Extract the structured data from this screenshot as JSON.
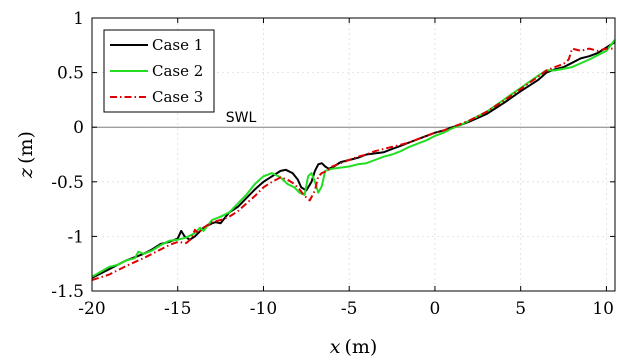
{
  "chart_data": {
    "type": "line",
    "xlabel": "x (m)",
    "ylabel": "z (m)",
    "xlabel_var": "x",
    "ylabel_var": "z",
    "axis_unit": "(m)",
    "xlim": [
      -20,
      10.5
    ],
    "ylim": [
      -1.5,
      1
    ],
    "xticks": [
      -20,
      -15,
      -10,
      -5,
      0,
      5,
      10
    ],
    "yticks": [
      -1.5,
      -1,
      -0.5,
      0,
      0.5,
      1
    ],
    "xtick_labels": [
      "-20",
      "-15",
      "-10",
      "-5",
      "0",
      "5",
      "10"
    ],
    "ytick_labels": [
      "-1.5",
      "-1",
      "-0.5",
      "0",
      "0.5",
      "1"
    ],
    "grid": true,
    "legend_position": "top-left",
    "reference_line": {
      "label": "SWL",
      "y": 0,
      "color": "#808080"
    },
    "series": [
      {
        "name": "Case 1",
        "color": "#000000",
        "dash": "solid",
        "x": [
          -20,
          -19,
          -18,
          -17,
          -16.5,
          -16,
          -15.5,
          -15,
          -14.8,
          -14.6,
          -14.3,
          -14,
          -13.5,
          -13,
          -12.8,
          -12.5,
          -12,
          -11.5,
          -11,
          -10.5,
          -10,
          -9.5,
          -9,
          -8.7,
          -8.3,
          -8,
          -7.8,
          -7.5,
          -7.2,
          -7,
          -6.8,
          -6.6,
          -6.4,
          -6.2,
          -6,
          -5.5,
          -5,
          -4.5,
          -4,
          -3.5,
          -3,
          -2.5,
          -2,
          -1.5,
          -1,
          -0.5,
          0,
          0.5,
          1,
          1.5,
          2,
          3,
          4,
          5,
          6,
          6.5,
          7,
          7.5,
          8,
          8.5,
          9,
          9.5,
          10,
          10.5
        ],
        "y": [
          -1.38,
          -1.3,
          -1.22,
          -1.16,
          -1.12,
          -1.07,
          -1.05,
          -1.02,
          -0.95,
          -1.0,
          -1.03,
          -1.0,
          -0.92,
          -0.88,
          -0.87,
          -0.88,
          -0.78,
          -0.73,
          -0.65,
          -0.57,
          -0.5,
          -0.45,
          -0.4,
          -0.39,
          -0.42,
          -0.48,
          -0.55,
          -0.58,
          -0.5,
          -0.4,
          -0.34,
          -0.33,
          -0.36,
          -0.38,
          -0.37,
          -0.32,
          -0.3,
          -0.28,
          -0.25,
          -0.24,
          -0.23,
          -0.2,
          -0.17,
          -0.14,
          -0.11,
          -0.08,
          -0.05,
          -0.03,
          0.0,
          0.02,
          0.05,
          0.12,
          0.22,
          0.33,
          0.43,
          0.5,
          0.53,
          0.55,
          0.59,
          0.63,
          0.65,
          0.68,
          0.73,
          0.78
        ]
      },
      {
        "name": "Case 2",
        "color": "#22dd22",
        "dash": "solid",
        "x": [
          -20,
          -19,
          -18.5,
          -18,
          -17.5,
          -17.3,
          -17,
          -16.5,
          -16,
          -15.5,
          -15,
          -14.5,
          -14,
          -13.7,
          -13.5,
          -13,
          -12.5,
          -12,
          -11.5,
          -11,
          -10.5,
          -10,
          -9.5,
          -9,
          -8.6,
          -8.2,
          -7.9,
          -7.6,
          -7.4,
          -7.2,
          -7,
          -6.8,
          -6.6,
          -6.4,
          -6,
          -5.5,
          -5,
          -4.5,
          -4,
          -3.5,
          -3,
          -2.5,
          -2,
          -1.5,
          -1,
          -0.5,
          0,
          0.5,
          1,
          1.5,
          2,
          3,
          4,
          5,
          6,
          6.5,
          7,
          8,
          9,
          10,
          10.5
        ],
        "y": [
          -1.37,
          -1.28,
          -1.26,
          -1.22,
          -1.2,
          -1.14,
          -1.16,
          -1.13,
          -1.08,
          -1.04,
          -1.03,
          -1.01,
          -0.97,
          -0.92,
          -0.95,
          -0.85,
          -0.82,
          -0.78,
          -0.7,
          -0.62,
          -0.52,
          -0.45,
          -0.42,
          -0.46,
          -0.52,
          -0.55,
          -0.6,
          -0.62,
          -0.45,
          -0.42,
          -0.5,
          -0.6,
          -0.54,
          -0.4,
          -0.38,
          -0.37,
          -0.36,
          -0.34,
          -0.33,
          -0.3,
          -0.27,
          -0.25,
          -0.22,
          -0.18,
          -0.15,
          -0.12,
          -0.08,
          -0.05,
          -0.01,
          0.02,
          0.06,
          0.14,
          0.25,
          0.36,
          0.47,
          0.52,
          0.52,
          0.55,
          0.62,
          0.7,
          0.8
        ]
      },
      {
        "name": "Case 3",
        "color": "#dd0000",
        "dash": "dashdot",
        "x": [
          -20,
          -19,
          -18,
          -17,
          -16.5,
          -16,
          -15.5,
          -15,
          -14.5,
          -14.2,
          -14,
          -13.8,
          -13.5,
          -13,
          -12.5,
          -12,
          -11.5,
          -11,
          -10.5,
          -10,
          -9.5,
          -9,
          -8.6,
          -8.2,
          -7.9,
          -7.6,
          -7.3,
          -7,
          -6.8,
          -6.6,
          -6.3,
          -6,
          -5.5,
          -5,
          -4.5,
          -4,
          -3.5,
          -3,
          -2.5,
          -2,
          -1.5,
          -1,
          -0.5,
          0,
          0.5,
          1,
          1.5,
          2,
          3,
          4,
          5,
          6,
          6.5,
          7,
          7.5,
          7.8,
          8,
          8.5,
          9,
          9.5,
          10,
          10.5
        ],
        "y": [
          -1.4,
          -1.35,
          -1.27,
          -1.2,
          -1.16,
          -1.12,
          -1.08,
          -1.05,
          -1.06,
          -1.02,
          -0.94,
          -0.97,
          -0.92,
          -0.87,
          -0.85,
          -0.82,
          -0.77,
          -0.7,
          -0.63,
          -0.55,
          -0.5,
          -0.46,
          -0.48,
          -0.52,
          -0.57,
          -0.63,
          -0.67,
          -0.58,
          -0.45,
          -0.42,
          -0.4,
          -0.36,
          -0.33,
          -0.3,
          -0.27,
          -0.25,
          -0.22,
          -0.2,
          -0.18,
          -0.16,
          -0.14,
          -0.11,
          -0.08,
          -0.05,
          -0.03,
          0.0,
          0.03,
          0.06,
          0.14,
          0.24,
          0.35,
          0.46,
          0.52,
          0.55,
          0.58,
          0.62,
          0.72,
          0.7,
          0.72,
          0.7,
          0.72,
          0.72
        ]
      }
    ]
  }
}
